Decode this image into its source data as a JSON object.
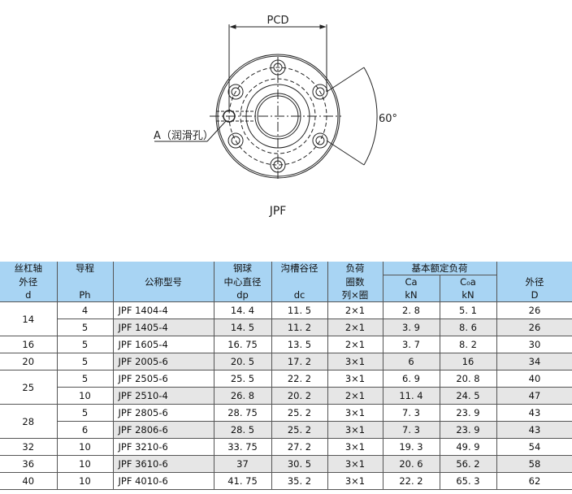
{
  "drawing": {
    "pcd_label": "PCD",
    "angle_label": "60°",
    "hole_label": "A（润滑孔）",
    "caption": "JPF"
  },
  "table": {
    "headers": {
      "d": [
        "丝杠轴",
        "外径",
        "d"
      ],
      "ph": [
        "导程",
        "",
        "Ph"
      ],
      "model": "公称型号",
      "dp": [
        "钢球",
        "中心直径",
        "dp"
      ],
      "dc": [
        "沟槽谷径",
        "",
        "dc"
      ],
      "circuits": [
        "负荷",
        "圈数",
        "列×圈"
      ],
      "rated_load": "基本额定负荷",
      "ca": [
        "Ca",
        "kN"
      ],
      "c0a": [
        "C₀a",
        "kN"
      ],
      "D": [
        "",
        "外径",
        "D"
      ]
    },
    "groups": [
      {
        "d": "14",
        "rows": [
          [
            "4",
            "JPF 1404-4",
            "14. 4",
            "11. 5",
            "2×1",
            "2. 8",
            "5. 1",
            "26"
          ],
          [
            "5",
            "JPF 1405-4",
            "14. 5",
            "11. 2",
            "2×1",
            "3. 9",
            "8. 6",
            "26"
          ]
        ]
      },
      {
        "d": "16",
        "rows": [
          [
            "5",
            "JPF 1605-4",
            "16. 75",
            "13. 5",
            "2×1",
            "3. 7",
            "8. 2",
            "30"
          ]
        ]
      },
      {
        "d": "20",
        "rows": [
          [
            "5",
            "JPF 2005-6",
            "20. 5",
            "17. 2",
            "3×1",
            "6",
            "16",
            "34"
          ]
        ]
      },
      {
        "d": "25",
        "rows": [
          [
            "5",
            "JPF 2505-6",
            "25. 5",
            "22. 2",
            "3×1",
            "6. 9",
            "20. 8",
            "40"
          ],
          [
            "10",
            "JPF 2510-4",
            "26. 8",
            "20. 2",
            "2×1",
            "11. 4",
            "24. 5",
            "47"
          ]
        ]
      },
      {
        "d": "28",
        "rows": [
          [
            "5",
            "JPF 2805-6",
            "28. 75",
            "25. 2",
            "3×1",
            "7. 3",
            "23. 9",
            "43"
          ],
          [
            "6",
            "JPF 2806-6",
            "28. 5",
            "25. 2",
            "3×1",
            "7. 3",
            "23. 9",
            "43"
          ]
        ]
      },
      {
        "d": "32",
        "rows": [
          [
            "10",
            "JPF 3210-6",
            "33. 75",
            "27. 2",
            "3×1",
            "19. 3",
            "49. 9",
            "54"
          ]
        ]
      },
      {
        "d": "36",
        "rows": [
          [
            "10",
            "JPF 3610-6",
            "37",
            "30. 5",
            "3×1",
            "20. 6",
            "56. 2",
            "58"
          ]
        ]
      },
      {
        "d": "40",
        "rows": [
          [
            "10",
            "JPF 4010-6",
            "41. 75",
            "35. 2",
            "3×1",
            "22. 2",
            "65. 3",
            "62"
          ]
        ]
      }
    ],
    "colors": {
      "header": "#a8d4f3",
      "alt_row": "#e6e6e6"
    }
  }
}
